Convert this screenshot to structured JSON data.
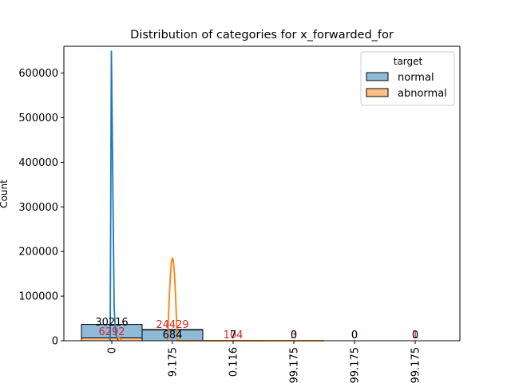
{
  "chart_data": {
    "type": "bar",
    "title": "Distribution of categories for x_forwarded_for",
    "xlabel": "",
    "ylabel": "Count",
    "ylim": [
      0,
      660000
    ],
    "yticks": [
      0,
      100000,
      200000,
      300000,
      400000,
      500000,
      600000
    ],
    "grid": false,
    "legend_position": "top-right",
    "legend_title": "target",
    "categories": [
      "0",
      "9.175",
      "0.116",
      "99.175",
      "99.175",
      "99.175"
    ],
    "series": [
      {
        "name": "normal",
        "color": "#1f77b4",
        "values": [
          30216,
          24429,
          104,
          3,
          0,
          0
        ]
      },
      {
        "name": "abnormal",
        "color": "#ff7f0e",
        "values": [
          6292,
          684,
          7,
          0,
          0,
          1
        ]
      }
    ],
    "data_labels": [
      {
        "category_index": 0,
        "text": "30216",
        "color": "#000000",
        "y": 30216
      },
      {
        "category_index": 0,
        "text": "6292",
        "color": "#d62728",
        "y": 6292
      },
      {
        "category_index": 1,
        "text": "24429",
        "color": "#d62728",
        "y": 24429
      },
      {
        "category_index": 1,
        "text": "684",
        "color": "#000000",
        "y": 684
      },
      {
        "category_index": 2,
        "text": "104",
        "color": "#d62728",
        "y": 104
      },
      {
        "category_index": 2,
        "text": "7",
        "color": "#000000",
        "y": 7
      },
      {
        "category_index": 3,
        "text": "3",
        "color": "#d62728",
        "y": 3
      },
      {
        "category_index": 3,
        "text": "0",
        "color": "#000000",
        "y": 0
      },
      {
        "category_index": 4,
        "text": "0",
        "color": "#d62728",
        "y": 0
      },
      {
        "category_index": 4,
        "text": "0",
        "color": "#000000",
        "y": 0
      },
      {
        "category_index": 5,
        "text": "1",
        "color": "#d62728",
        "y": 1
      },
      {
        "category_index": 5,
        "text": "0",
        "color": "#000000",
        "y": 0
      }
    ],
    "kde": [
      {
        "series": "normal",
        "peak_category_index": 0,
        "peak_value": 650000,
        "color": "#1f77b4"
      },
      {
        "series": "abnormal",
        "peak_category_index": 1,
        "peak_value": 185000,
        "color": "#ff7f0e"
      }
    ]
  }
}
